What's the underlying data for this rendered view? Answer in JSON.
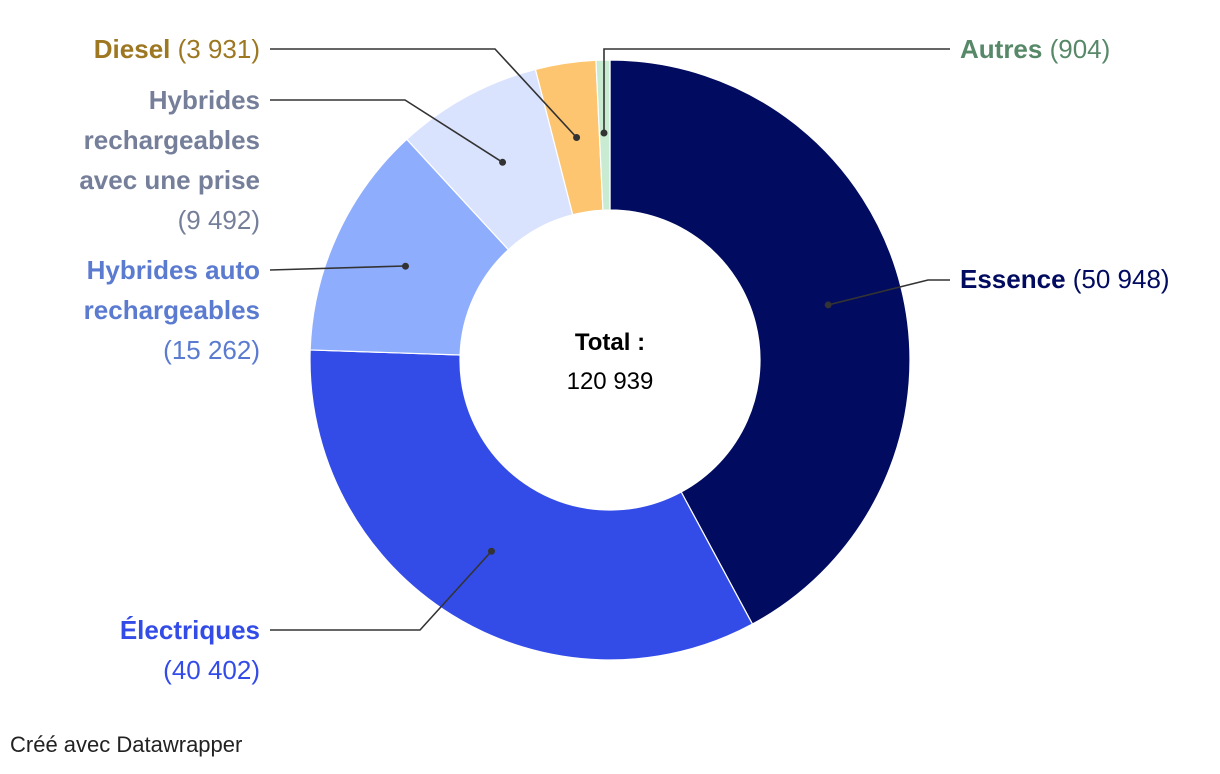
{
  "chart_data": {
    "type": "pie",
    "variant": "donut",
    "center_label": {
      "title": "Total :",
      "value": "120 939"
    },
    "slices": [
      {
        "key": "essence",
        "name_lines": [
          "Essence"
        ],
        "count_text": "(50 948)",
        "value": 50948,
        "color": "#010b5f",
        "text_color": "#010b5f"
      },
      {
        "key": "electriques",
        "name_lines": [
          "Électriques"
        ],
        "count_text": "(40 402)",
        "value": 40402,
        "color": "#334ce8",
        "text_color": "#334ce8"
      },
      {
        "key": "hybrides_auto",
        "name_lines": [
          "Hybrides auto",
          "rechargeables"
        ],
        "count_text": "(15 262)",
        "value": 15262,
        "color": "#8eadfd",
        "text_color": "#5b7bd0"
      },
      {
        "key": "hybrides_prise",
        "name_lines": [
          "Hybrides",
          "rechargeables",
          "avec une prise"
        ],
        "count_text": "(9 492)",
        "value": 9492,
        "color": "#dae3fe",
        "text_color": "#767f9a"
      },
      {
        "key": "diesel",
        "name_lines": [
          "Diesel"
        ],
        "count_text": "(3 931)",
        "value": 3931,
        "color": "#fdc56f",
        "text_color": "#9d7721"
      },
      {
        "key": "autres",
        "name_lines": [
          "Autres"
        ],
        "count_text": "(904)",
        "value": 904,
        "color": "#c9ebd1",
        "text_color": "#578868"
      }
    ]
  },
  "footer": {
    "credit": "Créé avec Datawrapper"
  }
}
